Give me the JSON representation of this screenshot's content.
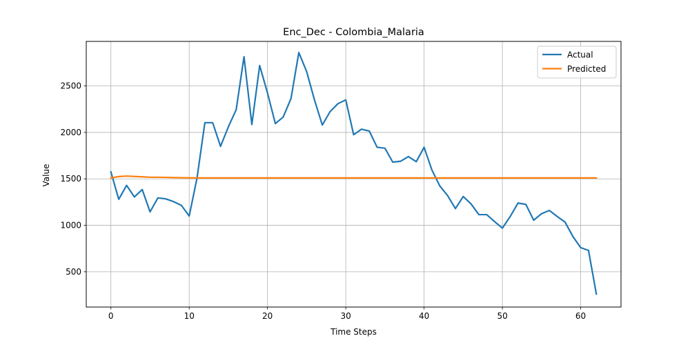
{
  "chart_data": {
    "type": "line",
    "title": "Enc_Dec - Colombia_Malaria",
    "xlabel": "Time Steps",
    "ylabel": "Value",
    "xlim": [
      -3.15,
      65.15
    ],
    "ylim": [
      120,
      2980
    ],
    "xticks": [
      0,
      10,
      20,
      30,
      40,
      50,
      60
    ],
    "yticks": [
      500,
      1000,
      1500,
      2000,
      2500
    ],
    "grid": true,
    "legend_position": "top-right",
    "series": [
      {
        "name": "Actual",
        "color": "#1f77b4",
        "values": [
          1575,
          1280,
          1430,
          1305,
          1385,
          1145,
          1295,
          1285,
          1255,
          1215,
          1100,
          1510,
          2105,
          2105,
          1850,
          2060,
          2245,
          2815,
          2085,
          2720,
          2425,
          2095,
          2165,
          2365,
          2860,
          2655,
          2350,
          2080,
          2225,
          2310,
          2350,
          1975,
          2035,
          2015,
          1840,
          1830,
          1680,
          1690,
          1740,
          1685,
          1840,
          1595,
          1425,
          1320,
          1180,
          1310,
          1230,
          1115,
          1115,
          1040,
          970,
          1095,
          1240,
          1225,
          1055,
          1125,
          1160,
          1095,
          1035,
          880,
          760,
          730,
          260
        ]
      },
      {
        "name": "Predicted",
        "color": "#ff7f0e",
        "values": [
          1510,
          1525,
          1530,
          1526,
          1522,
          1518,
          1517,
          1516,
          1514,
          1512,
          1511,
          1510,
          1510,
          1510,
          1510,
          1510,
          1510,
          1510,
          1510,
          1510,
          1510,
          1510,
          1510,
          1510,
          1510,
          1510,
          1510,
          1510,
          1510,
          1510,
          1510,
          1510,
          1510,
          1510,
          1510,
          1510,
          1510,
          1510,
          1510,
          1510,
          1510,
          1510,
          1510,
          1510,
          1510,
          1510,
          1510,
          1510,
          1510,
          1510,
          1510,
          1510,
          1510,
          1510,
          1510,
          1510,
          1510,
          1510,
          1510,
          1510,
          1510,
          1510,
          1510
        ]
      }
    ]
  }
}
